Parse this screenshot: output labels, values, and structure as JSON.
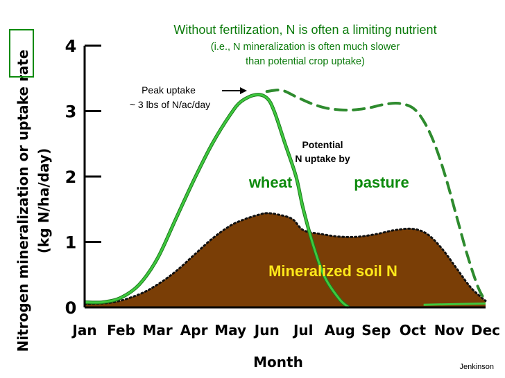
{
  "chart_data": {
    "type": "area",
    "title": "Without fertilization, N is often a limiting nutrient",
    "subtitle_line1": "(i.e., N mineralization is often much slower",
    "subtitle_line2": "than potential crop uptake)",
    "xlabel": "Month",
    "ylabel_line1": "Nitrogen mineralization or uptake rate",
    "ylabel_line2": "(kg N/ha/day)",
    "ylim": [
      0,
      4
    ],
    "yticks": [
      "0",
      "1",
      "2",
      "3",
      "4"
    ],
    "categories": [
      "Jan",
      "Feb",
      "Mar",
      "Apr",
      "May",
      "Jun",
      "Jul",
      "Aug",
      "Sep",
      "Oct",
      "Nov",
      "Dec"
    ],
    "series": [
      {
        "name": "Mineralized soil N",
        "style": "filled-area-dotted",
        "color": "#7a3e06",
        "x": [
          1,
          1.8,
          2.5,
          3.0,
          3.5,
          4.0,
          4.5,
          5.0,
          5.4,
          5.8,
          6.0,
          6.3,
          6.7,
          7.0,
          7.5,
          8.0,
          8.5,
          9.0,
          9.5,
          10.0,
          10.4,
          10.8,
          11.2,
          11.6,
          12.0
        ],
        "values": [
          0.05,
          0.08,
          0.2,
          0.35,
          0.55,
          0.8,
          1.05,
          1.25,
          1.35,
          1.42,
          1.44,
          1.42,
          1.35,
          1.18,
          1.12,
          1.08,
          1.08,
          1.12,
          1.18,
          1.2,
          1.12,
          0.9,
          0.6,
          0.3,
          0.1
        ]
      },
      {
        "name": "wheat",
        "style": "solid",
        "color": "#3ec83e",
        "x": [
          1,
          1.5,
          2.0,
          2.5,
          3.0,
          3.5,
          4.0,
          4.5,
          5.0,
          5.3,
          5.7,
          6.0,
          6.2,
          6.5,
          6.8,
          7.0,
          7.3,
          7.6,
          8.0,
          8.25
        ],
        "values": [
          0.08,
          0.08,
          0.15,
          0.35,
          0.75,
          1.35,
          1.95,
          2.5,
          2.95,
          3.15,
          3.25,
          3.2,
          3.0,
          2.5,
          2.0,
          1.5,
          0.9,
          0.45,
          0.12,
          0.0
        ]
      },
      {
        "name": "pasture",
        "style": "dashed",
        "color": "#2e8b2e",
        "x": [
          6.0,
          6.4,
          6.8,
          7.2,
          7.6,
          8.0,
          8.4,
          8.8,
          9.2,
          9.6,
          10.0,
          10.3,
          10.6,
          10.9,
          11.2,
          11.5,
          11.8,
          12.0
        ],
        "values": [
          3.3,
          3.32,
          3.22,
          3.12,
          3.05,
          3.02,
          3.02,
          3.05,
          3.1,
          3.12,
          3.05,
          2.85,
          2.5,
          2.0,
          1.4,
          0.8,
          0.3,
          0.1
        ]
      }
    ],
    "annotations": {
      "peak_line1": "Peak uptake",
      "peak_line2": "~ 3 lbs of N/ac/day",
      "potential_line1": "Potential",
      "potential_line2": "N uptake by",
      "wheat_label": "wheat",
      "pasture_label": "pasture",
      "soil_label": "Mineralized soil N",
      "credit": "Jenkinson"
    }
  }
}
